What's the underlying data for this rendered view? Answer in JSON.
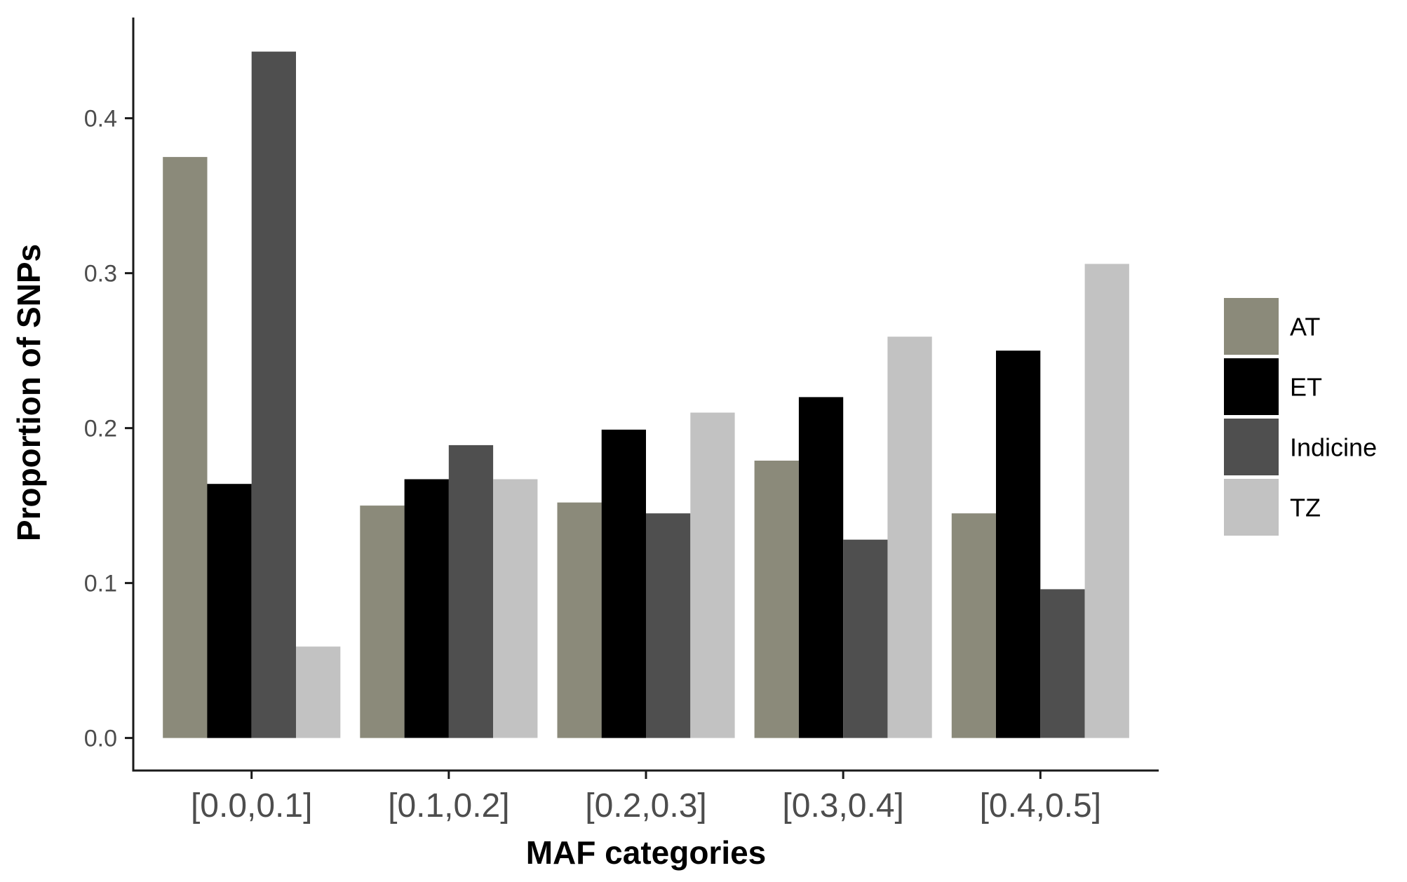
{
  "chart_data": {
    "type": "bar",
    "xlabel": "MAF categories",
    "ylabel": "Proportion of SNPs",
    "categories": [
      "[0.0,0.1]",
      "[0.1,0.2]",
      "[0.2,0.3]",
      "[0.3,0.4]",
      "[0.4,0.5]"
    ],
    "series": [
      {
        "name": "AT",
        "color": "#8b8a7a",
        "values": [
          0.375,
          0.15,
          0.152,
          0.179,
          0.145
        ]
      },
      {
        "name": "ET",
        "color": "#000000",
        "values": [
          0.164,
          0.167,
          0.199,
          0.22,
          0.25
        ]
      },
      {
        "name": "Indicine",
        "color": "#4f4f4f",
        "values": [
          0.443,
          0.189,
          0.145,
          0.128,
          0.096
        ]
      },
      {
        "name": "TZ",
        "color": "#c2c2c2",
        "values": [
          0.059,
          0.167,
          0.21,
          0.259,
          0.306
        ]
      }
    ],
    "yticks": [
      "0.0",
      "0.1",
      "0.2",
      "0.3",
      "0.4"
    ],
    "ylim": [
      -0.021,
      0.465
    ],
    "grid": false,
    "legend": "right"
  }
}
